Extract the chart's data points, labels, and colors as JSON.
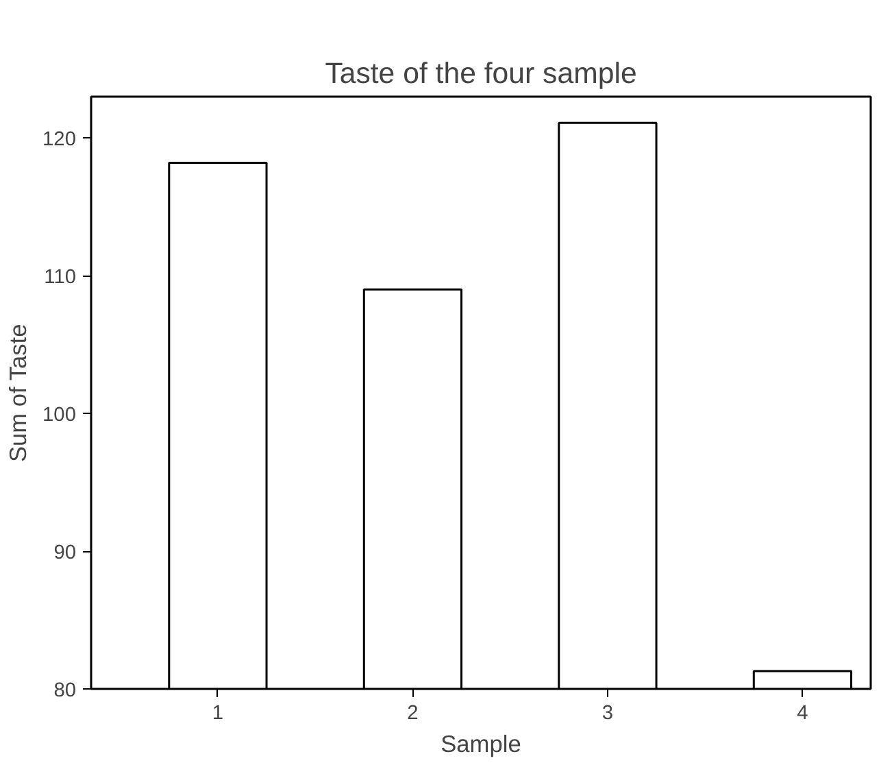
{
  "chart_data": {
    "type": "bar",
    "title": "Taste of the four sample",
    "xlabel": "Sample",
    "ylabel": "Sum of Taste",
    "categories": [
      "1",
      "2",
      "3",
      "4"
    ],
    "values": [
      118.2,
      109,
      121.1,
      81.3
    ],
    "color": "#ffffff",
    "ylim": [
      80,
      123
    ],
    "yticks": [
      80,
      90,
      100,
      110,
      120
    ],
    "grid": false
  }
}
